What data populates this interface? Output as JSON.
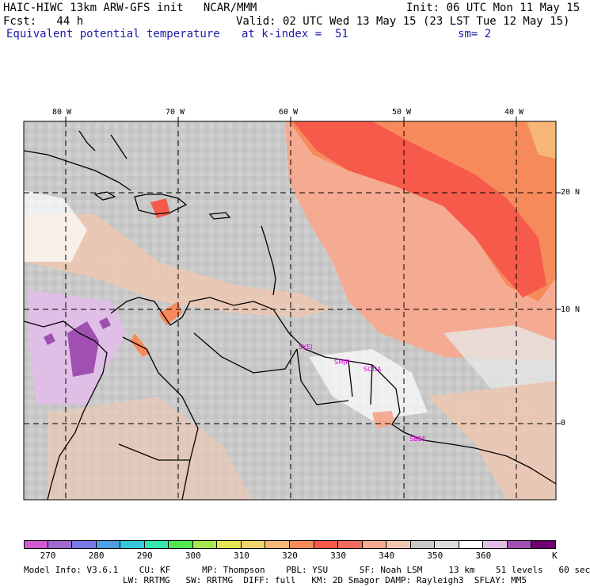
{
  "header": {
    "title": "HAIC-HIWC 13km ARW-GFS init   NCAR/MMM",
    "init": "Init: 06 UTC Mon 11 May 15",
    "fcst": "Fcst:   44 h",
    "valid": "Valid: 02 UTC Wed 13 May 15 (23 LST Tue 12 May 15)",
    "field": "Equivalent potential temperature",
    "level": "at k-index =  51",
    "smooth": "sm= 2"
  },
  "axes": {
    "lon_labels": [
      "80 W",
      "70 W",
      "60 W",
      "50 W",
      "40 W"
    ],
    "lat_labels": [
      "20 N",
      "10 N",
      "0"
    ]
  },
  "stations": [
    "SYEJ",
    "SMJP",
    "SOCA",
    "SBBE"
  ],
  "colorbar": {
    "colors": [
      "#d05ad0",
      "#9f6ad0",
      "#7a7ae6",
      "#4f9fe6",
      "#37c7d9",
      "#37e6b0",
      "#50e650",
      "#a8e650",
      "#e6e650",
      "#f2d26e",
      "#f7b877",
      "#f78a5a",
      "#f55a4a",
      "#f06a60",
      "#f5ab91",
      "#f0c8b0",
      "#c8c8c8",
      "#dcdcdc",
      "#ffffff",
      "#e0bfe6",
      "#a050b0",
      "#700070"
    ],
    "labels": [
      "270",
      "280",
      "290",
      "300",
      "310",
      "320",
      "330",
      "340",
      "350",
      "360"
    ],
    "end_label": "K"
  },
  "footer": {
    "line1": "Model Info: V3.6.1    CU: KF      MP: Thompson    PBL: YSU      SF: Noah LSM     13 km    51 levels   60 sec",
    "line2": "LW: RRTMG   SW: RRTMG  DIFF: full   KM: 2D Smagor DAMP: Rayleigh3  SFLAY: MM5"
  }
}
